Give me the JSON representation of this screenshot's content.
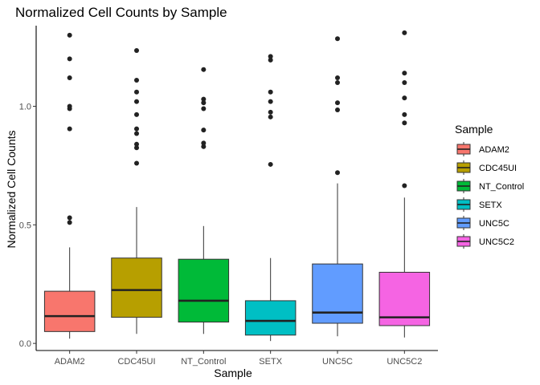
{
  "chart_data": {
    "type": "boxplot",
    "title": "Normalized Cell Counts by Sample",
    "xlabel": "Sample",
    "ylabel": "Normalized Cell Counts",
    "ylim": [
      -0.03,
      1.34
    ],
    "yticks": [
      0.0,
      0.5,
      1.0
    ],
    "ytick_labels": [
      "0.0",
      "0.5",
      "1.0"
    ],
    "grid": false,
    "legend": {
      "title": "Sample",
      "position": "right"
    },
    "series": [
      {
        "name": "ADAM2",
        "color": "#F8766D",
        "whisker_low": 0.02,
        "q1": 0.05,
        "median": 0.115,
        "q3": 0.22,
        "whisker_high": 0.405,
        "outliers": [
          1.3,
          1.2,
          1.12,
          1.0,
          0.99,
          0.905,
          0.53,
          0.51
        ]
      },
      {
        "name": "CDC45UI",
        "color": "#B79F00",
        "whisker_low": 0.04,
        "q1": 0.11,
        "median": 0.225,
        "q3": 0.36,
        "whisker_high": 0.575,
        "outliers": [
          1.235,
          1.11,
          1.06,
          1.02,
          0.965,
          0.905,
          0.885,
          0.84,
          0.825,
          0.76
        ]
      },
      {
        "name": "NT_Control",
        "color": "#00BA38",
        "whisker_low": 0.04,
        "q1": 0.09,
        "median": 0.18,
        "q3": 0.355,
        "whisker_high": 0.495,
        "outliers": [
          1.155,
          1.03,
          1.015,
          0.99,
          0.9,
          0.845,
          0.83
        ]
      },
      {
        "name": "SETX",
        "color": "#00BFC4",
        "whisker_low": 0.01,
        "q1": 0.035,
        "median": 0.095,
        "q3": 0.18,
        "whisker_high": 0.36,
        "outliers": [
          1.21,
          1.195,
          1.06,
          1.02,
          0.975,
          0.955,
          0.755
        ]
      },
      {
        "name": "UNC5C",
        "color": "#619CFF",
        "whisker_low": 0.03,
        "q1": 0.085,
        "median": 0.13,
        "q3": 0.335,
        "whisker_high": 0.675,
        "outliers": [
          1.285,
          1.12,
          1.1,
          1.015,
          0.985,
          0.72
        ]
      },
      {
        "name": "UNC5C2",
        "color": "#F564E3",
        "whisker_low": 0.025,
        "q1": 0.075,
        "median": 0.11,
        "q3": 0.3,
        "whisker_high": 0.615,
        "outliers": [
          1.31,
          1.14,
          1.1,
          1.035,
          0.965,
          0.93,
          0.665
        ]
      }
    ]
  }
}
